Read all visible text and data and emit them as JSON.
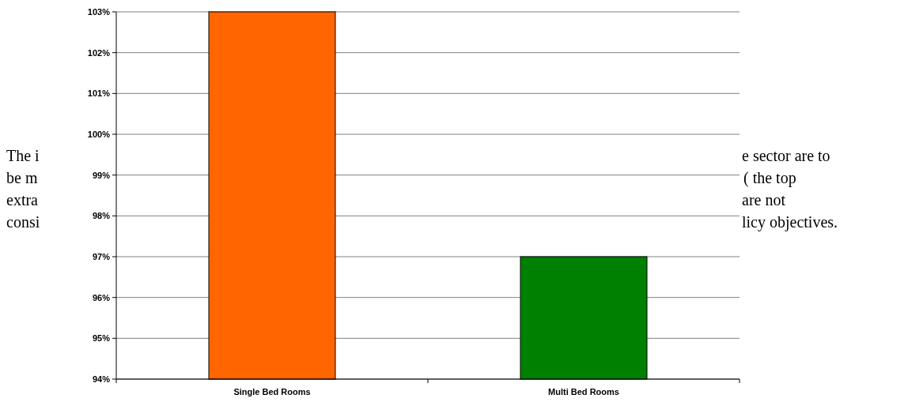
{
  "chart_data": {
    "type": "bar",
    "categories": [
      "Single Bed Rooms",
      "Multi Bed Rooms"
    ],
    "colors": [
      "#ff6600",
      "#008000"
    ],
    "values": [
      103,
      97
    ],
    "ylim": [
      94,
      103
    ],
    "yticks": [
      {
        "value": 94,
        "label": "94%"
      },
      {
        "value": 95,
        "label": "95%"
      },
      {
        "value": 96,
        "label": "96%"
      },
      {
        "value": 97,
        "label": "97%"
      },
      {
        "value": 98,
        "label": "98%"
      },
      {
        "value": 99,
        "label": "99%"
      },
      {
        "value": 100,
        "label": "100%"
      },
      {
        "value": 101,
        "label": "101%"
      },
      {
        "value": 102,
        "label": "102%"
      },
      {
        "value": 103,
        "label": "103%"
      }
    ],
    "grid": "y",
    "annotations": [
      "The i",
      "be m",
      "extra",
      "consi",
      "e sector are to",
      "( the top",
      "are not",
      "licy objectives."
    ]
  }
}
